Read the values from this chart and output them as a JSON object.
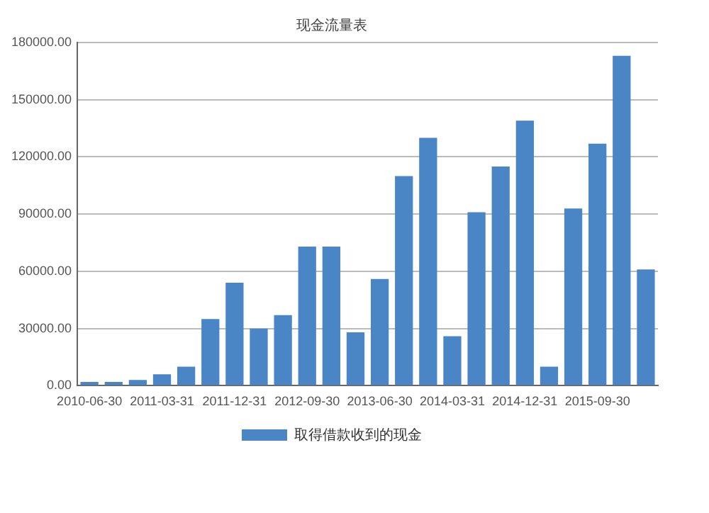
{
  "chart_data": {
    "type": "bar",
    "title": "现金流量表",
    "categories": [
      "2010-06-30",
      null,
      null,
      "2011-03-31",
      null,
      null,
      "2011-12-31",
      null,
      null,
      "2012-09-30",
      null,
      null,
      "2013-06-30",
      null,
      null,
      "2014-03-31",
      null,
      null,
      "2014-12-31",
      null,
      null,
      "2015-09-30",
      null,
      null
    ],
    "series": [
      {
        "name": "取得借款收到的现金",
        "color": "#4a86c5",
        "values": [
          2000,
          2000,
          3000,
          6000,
          10000,
          35000,
          54000,
          30000,
          37000,
          73000,
          73000,
          28000,
          56000,
          110000,
          130000,
          26000,
          91000,
          115000,
          139000,
          10000,
          93000,
          127000,
          173000,
          61000
        ]
      }
    ],
    "ylim": [
      0,
      180000
    ],
    "yticks": [
      {
        "value": 0,
        "label": "0.00"
      },
      {
        "value": 30000,
        "label": "30000.00"
      },
      {
        "value": 60000,
        "label": "60000.00"
      },
      {
        "value": 90000,
        "label": "90000.00"
      },
      {
        "value": 120000,
        "label": "120000.00"
      },
      {
        "value": 150000,
        "label": "150000.00"
      },
      {
        "value": 180000,
        "label": "180000.00"
      }
    ],
    "grid": "y",
    "legend": "bottom"
  }
}
